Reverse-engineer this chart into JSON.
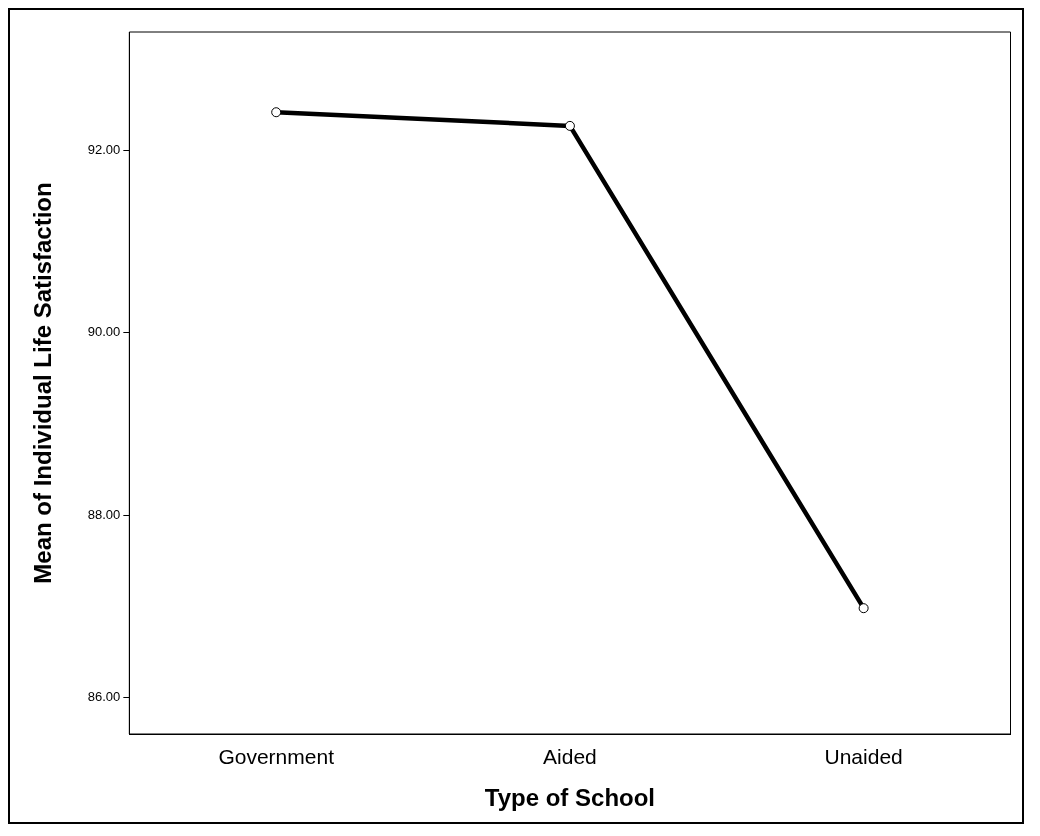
{
  "chart_data": {
    "type": "line",
    "xlabel": "Type of School",
    "ylabel": "Mean of Individual Life Satisfaction",
    "categories": [
      "Government",
      "Aided",
      "Unaided"
    ],
    "series": [
      {
        "color": "#000000",
        "values": [
          92.42,
          92.27,
          86.98
        ]
      }
    ],
    "ylim": [
      85.6,
      93.3
    ],
    "yticks": [
      {
        "value": 86,
        "label": "86.00"
      },
      {
        "value": 88,
        "label": "88.00"
      },
      {
        "value": 90,
        "label": "90.00"
      },
      {
        "value": 92,
        "label": "92.00"
      }
    ],
    "grid": false,
    "legend": false,
    "marker": "circle",
    "line_style": "solid"
  }
}
